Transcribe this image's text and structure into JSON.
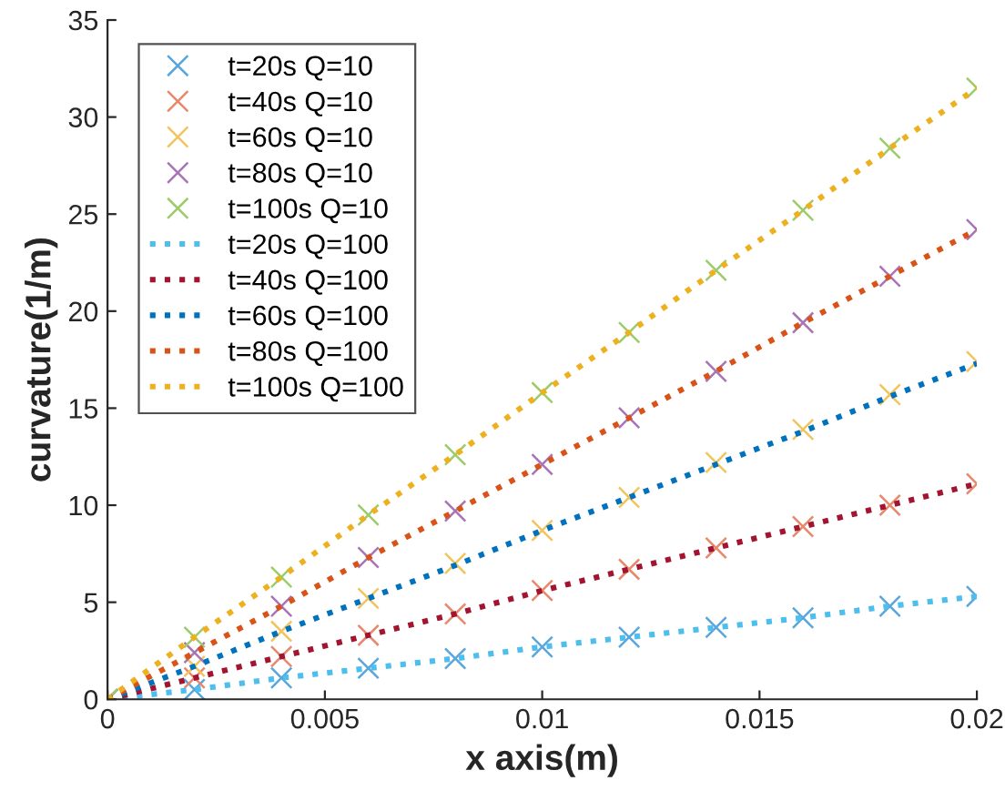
{
  "chart_data": {
    "type": "scatter",
    "xlabel": "x axis(m)",
    "ylabel": "curvature(1/m)",
    "x": [
      0,
      0.002,
      0.004,
      0.006,
      0.008,
      0.01,
      0.012,
      0.014,
      0.016,
      0.018,
      0.02
    ],
    "xlim": [
      0,
      0.02
    ],
    "xticks": [
      0,
      0.005,
      0.01,
      0.015,
      0.02
    ],
    "ylim": [
      0,
      35
    ],
    "yticks": [
      0,
      5,
      10,
      15,
      20,
      25,
      30,
      35
    ],
    "grid": false,
    "legend": "top left",
    "marker": "cross",
    "series": [
      {
        "name": "t=20s Q=10",
        "color": "#5aa6dc",
        "values": [
          0,
          0.5,
          1.1,
          1.6,
          2.1,
          2.7,
          3.2,
          3.7,
          4.2,
          4.8,
          5.3
        ]
      },
      {
        "name": "t=40s Q=10",
        "color": "#e9876a",
        "values": [
          0,
          1.1,
          2.2,
          3.3,
          4.4,
          5.6,
          6.7,
          7.8,
          8.9,
          10.0,
          11.1
        ]
      },
      {
        "name": "t=60s Q=10",
        "color": "#f2c45e",
        "values": [
          0,
          1.7,
          3.5,
          5.2,
          7.0,
          8.7,
          10.4,
          12.2,
          13.9,
          15.7,
          17.4
        ]
      },
      {
        "name": "t=80s Q=10",
        "color": "#a973b7",
        "values": [
          0,
          2.4,
          4.8,
          7.3,
          9.7,
          12.1,
          14.5,
          16.9,
          19.4,
          21.8,
          24.2
        ]
      },
      {
        "name": "t=100s Q=10",
        "color": "#9ccc6a",
        "values": [
          0,
          3.2,
          6.3,
          9.5,
          12.6,
          15.8,
          18.9,
          22.1,
          25.2,
          28.4,
          31.5
        ]
      },
      {
        "name": "t=20s Q=100",
        "type": "line",
        "line_style": "dotted",
        "marker": "none",
        "color": "#4dbeee",
        "values": [
          0,
          0.5,
          1.1,
          1.6,
          2.1,
          2.7,
          3.2,
          3.7,
          4.2,
          4.8,
          5.3
        ]
      },
      {
        "name": "t=40s Q=100",
        "type": "line",
        "line_style": "dotted",
        "marker": "none",
        "color": "#a2142f",
        "values": [
          0,
          1.1,
          2.2,
          3.3,
          4.4,
          5.6,
          6.7,
          7.8,
          8.9,
          10.0,
          11.1
        ]
      },
      {
        "name": "t=60s Q=100",
        "type": "line",
        "line_style": "dotted",
        "marker": "none",
        "color": "#0072bd",
        "values": [
          0,
          1.7,
          3.5,
          5.2,
          6.9,
          8.7,
          10.4,
          12.1,
          13.8,
          15.6,
          17.3
        ]
      },
      {
        "name": "t=80s Q=100",
        "type": "line",
        "line_style": "dotted",
        "marker": "none",
        "color": "#d95319",
        "values": [
          0,
          2.4,
          4.8,
          7.3,
          9.7,
          12.1,
          14.5,
          16.9,
          19.4,
          21.8,
          24.2
        ]
      },
      {
        "name": "t=100s Q=100",
        "type": "line",
        "line_style": "dotted",
        "marker": "none",
        "color": "#edb120",
        "values": [
          0,
          3.2,
          6.3,
          9.5,
          12.6,
          15.8,
          18.9,
          22.1,
          25.2,
          28.4,
          31.5
        ]
      }
    ]
  }
}
